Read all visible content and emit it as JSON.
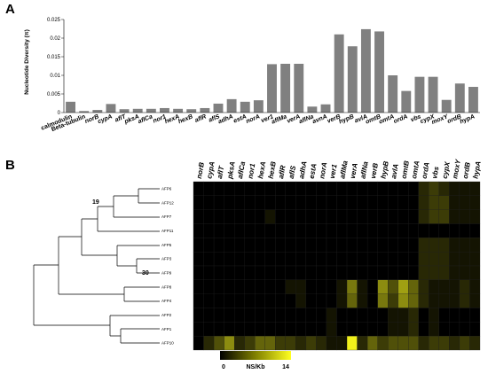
{
  "panels": {
    "a_letter": "A",
    "b_letter": "B"
  },
  "chart_data": [
    {
      "type": "bar",
      "panel": "A",
      "ylabel": "Nucleotide Diversity (π)",
      "ylim": [
        0,
        0.025
      ],
      "yticks": [
        "0",
        "0.005",
        "0.01",
        "0.015",
        "0.02",
        "0.025"
      ],
      "bar_color": "#808080",
      "categories": [
        "calmodulin",
        "Beta-tubulin",
        "norB",
        "cypA",
        "aflT",
        "pksA",
        "aflCa",
        "nor1",
        "hexA",
        "hexB",
        "aflR",
        "aflS",
        "adhA",
        "estA",
        "norA",
        "ver1",
        "aflMa",
        "verA",
        "aflNa",
        "avnA",
        "verB",
        "hypB",
        "avlA",
        "omtB",
        "omtA",
        "ordA",
        "vbs",
        "cypX",
        "moxY",
        "ordB",
        "hypA"
      ],
      "italic_from_index": 2,
      "values": [
        0.0029,
        0.0004,
        0.0007,
        0.0023,
        0.0009,
        0.001,
        0.001,
        0.0012,
        0.001,
        0.0009,
        0.0012,
        0.0024,
        0.0036,
        0.0029,
        0.0033,
        0.013,
        0.0131,
        0.0131,
        0.0016,
        0.0022,
        0.021,
        0.0178,
        0.0224,
        0.0218,
        0.01,
        0.0058,
        0.0096,
        0.0096,
        0.0034,
        0.0078,
        0.0069
      ]
    },
    {
      "type": "heatmap",
      "panel": "B",
      "columns": [
        "norB",
        "cypA",
        "aflT",
        "pksA",
        "aflCa",
        "nor1",
        "hexA",
        "hexB",
        "aflR",
        "aflS",
        "adhA",
        "estA",
        "norA",
        "ver1",
        "aflMa",
        "verA",
        "aflNa",
        "verB",
        "hypB",
        "avlA",
        "omtB",
        "omtA",
        "ordA",
        "vbs",
        "cypX",
        "moxY",
        "ordB",
        "hypA"
      ],
      "rows": [
        "AFP6",
        "AFP12",
        "AFP7",
        "AFP11",
        "AFP5",
        "AFP3",
        "AFP9",
        "AFP8",
        "AFP4",
        "AFP2",
        "AFP1",
        "AFP10"
      ],
      "values": [
        [
          0,
          0,
          0,
          0,
          0,
          0,
          0,
          0,
          0,
          0,
          0,
          0,
          0,
          0,
          0,
          0,
          0,
          0,
          0,
          0,
          0,
          0,
          2,
          3,
          2,
          1,
          1,
          1
        ],
        [
          0,
          0,
          0,
          0,
          0,
          0,
          0,
          0,
          0,
          0,
          0,
          0,
          0,
          0,
          0,
          0,
          0,
          0,
          0,
          0,
          0,
          0,
          2,
          3,
          3,
          1,
          1,
          1
        ],
        [
          0,
          0,
          0,
          0,
          0,
          0,
          0,
          1,
          0,
          0,
          0,
          0,
          0,
          0,
          0,
          0,
          0,
          0,
          0,
          0,
          0,
          0,
          2,
          3,
          3,
          1,
          1,
          1
        ],
        [
          0,
          0,
          0,
          0,
          0,
          0,
          0,
          0,
          0,
          0,
          0,
          0,
          0,
          0,
          0,
          0,
          0,
          0,
          0,
          0,
          0,
          0,
          0,
          0,
          0,
          0,
          0,
          0
        ],
        [
          0,
          0,
          0,
          0,
          0,
          0,
          0,
          0,
          0,
          0,
          0,
          0,
          0,
          0,
          0,
          0,
          0,
          0,
          0,
          0,
          0,
          0,
          2,
          2,
          2,
          1,
          1,
          1
        ],
        [
          0,
          0,
          0,
          0,
          0,
          0,
          0,
          0,
          0,
          0,
          0,
          0,
          0,
          0,
          0,
          0,
          0,
          0,
          0,
          0,
          0,
          0,
          2,
          2,
          2,
          1,
          1,
          1
        ],
        [
          0,
          0,
          0,
          0,
          0,
          0,
          0,
          0,
          0,
          0,
          0,
          0,
          0,
          0,
          0,
          0,
          0,
          0,
          0,
          0,
          0,
          0,
          2,
          2,
          2,
          1,
          1,
          1
        ],
        [
          0,
          0,
          0,
          0,
          0,
          0,
          0,
          0,
          0,
          1,
          1,
          0,
          0,
          0,
          1,
          6,
          1,
          0,
          7,
          4,
          8,
          5,
          2,
          1,
          1,
          1,
          2,
          1
        ],
        [
          0,
          0,
          0,
          0,
          0,
          0,
          0,
          0,
          0,
          0,
          1,
          0,
          0,
          0,
          1,
          5,
          1,
          0,
          6,
          3,
          7,
          5,
          2,
          1,
          1,
          1,
          2,
          1
        ],
        [
          0,
          0,
          0,
          0,
          0,
          0,
          0,
          0,
          0,
          0,
          0,
          0,
          0,
          1,
          0,
          0,
          0,
          0,
          0,
          1,
          1,
          2,
          0,
          1,
          0,
          0,
          0,
          0
        ],
        [
          0,
          0,
          0,
          0,
          0,
          0,
          0,
          0,
          0,
          0,
          0,
          0,
          0,
          1,
          0,
          0,
          0,
          0,
          0,
          1,
          1,
          2,
          0,
          1,
          0,
          0,
          0,
          0
        ],
        [
          0,
          2,
          4,
          7,
          2,
          3,
          5,
          5,
          3,
          3,
          2,
          3,
          2,
          1,
          1,
          12,
          2,
          5,
          3,
          4,
          4,
          4,
          2,
          3,
          3,
          2,
          3,
          2
        ]
      ],
      "scale": {
        "min_label": "0",
        "max_label": "14",
        "unit": "NS/Kb",
        "min": 0,
        "max": 14
      },
      "dendrogram": {
        "bootstrap_labels": [
          "19",
          "30"
        ]
      }
    }
  ]
}
